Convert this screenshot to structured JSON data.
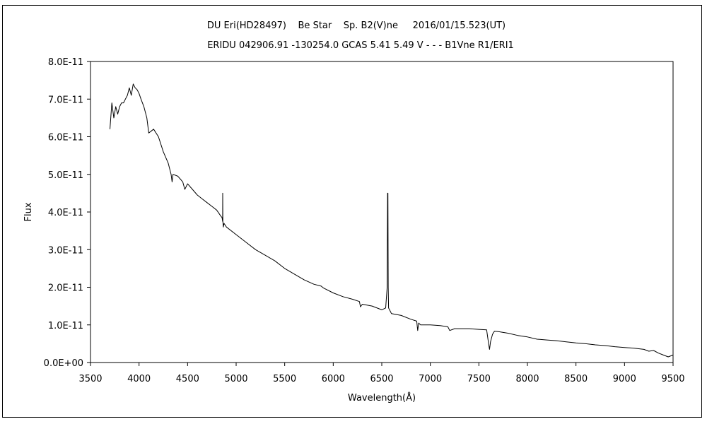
{
  "chart_data": {
    "type": "line",
    "title": "DU Eri(HD28497)    Be Star    Sp. B2(V)ne     2016/01/15.523(UT)",
    "subtitle": "ERIDU 042906.91 -130254.0 GCAS 5.41 5.49 V - - - B1Vne R1/ERI1",
    "xlabel": "Wavelength(Å)",
    "ylabel": "Flux",
    "xlim": [
      3500,
      9500
    ],
    "ylim": [
      0,
      8e-11
    ],
    "x_ticks": [
      3500,
      4000,
      4500,
      5000,
      5500,
      6000,
      6500,
      7000,
      7500,
      8000,
      8500,
      9000,
      9500
    ],
    "x_tick_labels": [
      "3500",
      "4000",
      "4500",
      "5000",
      "5500",
      "6000",
      "6500",
      "7000",
      "7500",
      "8000",
      "8500",
      "9000",
      "9500"
    ],
    "y_ticks": [
      0,
      1e-11,
      2e-11,
      3e-11,
      4e-11,
      5e-11,
      6e-11,
      7e-11,
      8e-11
    ],
    "y_tick_labels": [
      "0.0E+00",
      "1.0E-11",
      "2.0E-11",
      "3.0E-11",
      "4.0E-11",
      "5.0E-11",
      "6.0E-11",
      "7.0E-11",
      "8.0E-11"
    ],
    "grid": false,
    "legend": "none",
    "line_color": "#000000",
    "series": [
      {
        "x": [
          3700,
          3720,
          3740,
          3760,
          3780,
          3800,
          3820,
          3840,
          3860,
          3880,
          3900,
          3920,
          3940,
          3960,
          3980,
          4000,
          4020,
          4050,
          4080,
          4100,
          4150,
          4200,
          4250,
          4300,
          4330,
          4340,
          4350,
          4400,
          4450,
          4471,
          4500,
          4550,
          4600,
          4650,
          4700,
          4750,
          4800,
          4840,
          4855,
          4861,
          4862,
          4863,
          4868,
          4875,
          4900,
          5000,
          5100,
          5200,
          5300,
          5400,
          5500,
          5600,
          5700,
          5800,
          5876,
          5900,
          6000,
          6100,
          6200,
          6270,
          6280,
          6300,
          6400,
          6500,
          6540,
          6555,
          6560,
          6563,
          6566,
          6570,
          6580,
          6600,
          6700,
          6800,
          6860,
          6870,
          6880,
          6900,
          7000,
          7100,
          7180,
          7200,
          7250,
          7300,
          7400,
          7500,
          7580,
          7600,
          7610,
          7620,
          7640,
          7660,
          7700,
          7800,
          7900,
          8000,
          8100,
          8200,
          8300,
          8400,
          8500,
          8600,
          8700,
          8800,
          8900,
          9000,
          9100,
          9200,
          9250,
          9300,
          9350,
          9400,
          9450,
          9500
        ],
        "y": [
          6.2e-11,
          6.9e-11,
          6.5e-11,
          6.8e-11,
          6.6e-11,
          6.8e-11,
          6.9e-11,
          6.9e-11,
          7e-11,
          7.1e-11,
          7.3e-11,
          7.1e-11,
          7.4e-11,
          7.3e-11,
          7.25e-11,
          7.15e-11,
          7e-11,
          6.8e-11,
          6.5e-11,
          6.1e-11,
          6.2e-11,
          6e-11,
          5.6e-11,
          5.3e-11,
          5e-11,
          4.8e-11,
          5e-11,
          4.95e-11,
          4.8e-11,
          4.6e-11,
          4.75e-11,
          4.6e-11,
          4.45e-11,
          4.35e-11,
          4.25e-11,
          4.15e-11,
          4.05e-11,
          3.9e-11,
          3.85e-11,
          3.75e-11,
          4.5e-11,
          3.75e-11,
          3.6e-11,
          3.7e-11,
          3.6e-11,
          3.4e-11,
          3.2e-11,
          3e-11,
          2.85e-11,
          2.7e-11,
          2.5e-11,
          2.35e-11,
          2.2e-11,
          2.08e-11,
          2.03e-11,
          1.98e-11,
          1.85e-11,
          1.75e-11,
          1.68e-11,
          1.62e-11,
          1.48e-11,
          1.55e-11,
          1.5e-11,
          1.4e-11,
          1.45e-11,
          2e-11,
          4.5e-11,
          4.5e-11,
          2e-11,
          1.45e-11,
          1.4e-11,
          1.3e-11,
          1.25e-11,
          1.15e-11,
          1.1e-11,
          8.5e-12,
          1.05e-11,
          1e-11,
          1e-11,
          9.8e-12,
          9.5e-12,
          8.5e-12,
          9e-12,
          9e-12,
          9e-12,
          8.8e-12,
          8.7e-12,
          5e-12,
          3.5e-12,
          5.5e-12,
          7.5e-12,
          8.3e-12,
          8.2e-12,
          7.8e-12,
          7.2e-12,
          6.8e-12,
          6.2e-12,
          6e-12,
          5.8e-12,
          5.5e-12,
          5.2e-12,
          5e-12,
          4.7e-12,
          4.5e-12,
          4.2e-12,
          4e-12,
          3.8e-12,
          3.5e-12,
          3e-12,
          3.2e-12,
          2.5e-12,
          2e-12,
          1.5e-12,
          2e-12
        ]
      }
    ]
  }
}
